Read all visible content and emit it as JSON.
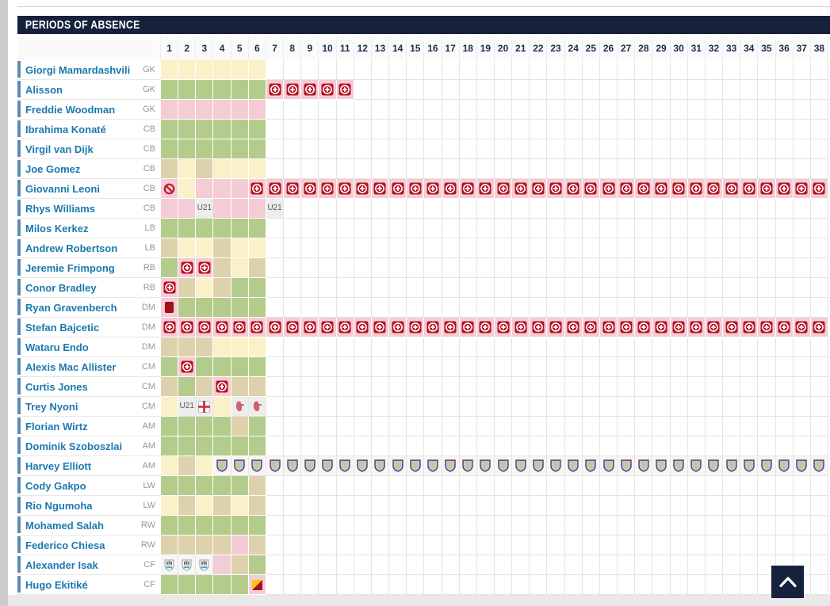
{
  "panel": {
    "title": "PERIODS OF ABSENCE"
  },
  "weeks": [
    "1",
    "2",
    "3",
    "4",
    "5",
    "6",
    "7",
    "8",
    "9",
    "10",
    "11",
    "12",
    "13",
    "14",
    "15",
    "16",
    "17",
    "18",
    "19",
    "20",
    "21",
    "22",
    "23",
    "24",
    "25",
    "26",
    "27",
    "28",
    "29",
    "30",
    "31",
    "32",
    "33",
    "34",
    "35",
    "36",
    "37",
    "38"
  ],
  "palette": {
    "green": "#b4cc8b",
    "yellow": "#faf1c8",
    "tan": "#ded2ae",
    "pink": "#f3ccd6",
    "empty": "#ffffff",
    "badge_bg": "#ededed",
    "crest_bg": "#f6f6f6",
    "header_navy": "#16213d",
    "name_blue": "#1b79af",
    "accent_blue": "#5f8ab0",
    "injury_red": "#b5121f"
  },
  "icon_names": {
    "inj": "injury-icon",
    "ban": "unavailable-icon",
    "red": "red-card-icon",
    "yr": "two-yellow-cards-icon",
    "u21": "u21-badge",
    "eng": "england-flag-icon",
    "lfc": "liverpool-crest-icon",
    "avl": "aston-villa-crest-icon",
    "new": "newcastle-crest-icon"
  },
  "badges": {
    "u21_label": "U21"
  },
  "players": [
    {
      "name": "Giorgi Mamardashvili",
      "pos": "GK",
      "cells": [
        "y*6",
        "w*32"
      ]
    },
    {
      "name": "Alisson",
      "pos": "GK",
      "cells": [
        "g*6",
        "p:inj*5",
        "w*27"
      ]
    },
    {
      "name": "Freddie Woodman",
      "pos": "GK",
      "cells": [
        "p*6",
        "w*32"
      ]
    },
    {
      "name": "Ibrahima Konaté",
      "pos": "CB",
      "cells": [
        "g*6",
        "w*32"
      ]
    },
    {
      "name": "Virgil van Dijk",
      "pos": "CB",
      "cells": [
        "g*6",
        "w*32"
      ]
    },
    {
      "name": "Joe Gomez",
      "pos": "CB",
      "cells": [
        "t",
        "y",
        "t",
        "y*3",
        "w*32"
      ]
    },
    {
      "name": "Giovanni Leoni",
      "pos": "CB",
      "cells": [
        "p:ban",
        "y",
        "p*3",
        "p:inj*33"
      ]
    },
    {
      "name": "Rhys Williams",
      "pos": "CB",
      "cells": [
        "p*2",
        "b:u21",
        "p*3",
        "b:u21",
        "w*31"
      ]
    },
    {
      "name": "Milos Kerkez",
      "pos": "LB",
      "cells": [
        "g*6",
        "w*32"
      ]
    },
    {
      "name": "Andrew Robertson",
      "pos": "LB",
      "cells": [
        "t",
        "y*2",
        "t",
        "y*2",
        "w*32"
      ]
    },
    {
      "name": "Jeremie Frimpong",
      "pos": "RB",
      "cells": [
        "g",
        "p:inj*2",
        "t",
        "y",
        "t",
        "w*32"
      ]
    },
    {
      "name": "Conor Bradley",
      "pos": "RB",
      "cells": [
        "p:inj",
        "t",
        "y",
        "t",
        "g*2",
        "w*32"
      ]
    },
    {
      "name": "Ryan Gravenberch",
      "pos": "DM",
      "cells": [
        "p:red",
        "g*5",
        "w*32"
      ]
    },
    {
      "name": "Stefan Bajcetic",
      "pos": "DM",
      "cells": [
        "p:inj*38"
      ]
    },
    {
      "name": "Wataru Endo",
      "pos": "DM",
      "cells": [
        "t*3",
        "y*3",
        "w*32"
      ]
    },
    {
      "name": "Alexis Mac Allister",
      "pos": "CM",
      "cells": [
        "g",
        "p:inj",
        "g*4",
        "w*32"
      ]
    },
    {
      "name": "Curtis Jones",
      "pos": "CM",
      "cells": [
        "t",
        "g",
        "t",
        "p:inj",
        "t*2",
        "w*32"
      ]
    },
    {
      "name": "Trey Nyoni",
      "pos": "CM",
      "cells": [
        "y",
        "b:u21",
        "b:eng",
        "y",
        "b:lfc*2",
        "w*32"
      ]
    },
    {
      "name": "Florian Wirtz",
      "pos": "AM",
      "cells": [
        "g*4",
        "t",
        "g",
        "w*32"
      ]
    },
    {
      "name": "Dominik Szoboszlai",
      "pos": "AM",
      "cells": [
        "g*6",
        "w*32"
      ]
    },
    {
      "name": "Harvey Elliott",
      "pos": "AM",
      "cells": [
        "y",
        "t",
        "y",
        "c:avl*35"
      ]
    },
    {
      "name": "Cody Gakpo",
      "pos": "LW",
      "cells": [
        "g*5",
        "t",
        "w*32"
      ]
    },
    {
      "name": "Rio Ngumoha",
      "pos": "LW",
      "cells": [
        "y",
        "t",
        "y",
        "t",
        "y",
        "t",
        "w*32"
      ]
    },
    {
      "name": "Mohamed Salah",
      "pos": "RW",
      "cells": [
        "g*6",
        "w*32"
      ]
    },
    {
      "name": "Federico Chiesa",
      "pos": "RW",
      "cells": [
        "t*4",
        "p",
        "t",
        "w*32"
      ]
    },
    {
      "name": "Alexander Isak",
      "pos": "CF",
      "cells": [
        "c:new*3",
        "p",
        "t",
        "g",
        "w*32"
      ]
    },
    {
      "name": "Hugo Ekitiké",
      "pos": "CF",
      "cells": [
        "g*5",
        "p:yr",
        "w*32"
      ]
    }
  ]
}
